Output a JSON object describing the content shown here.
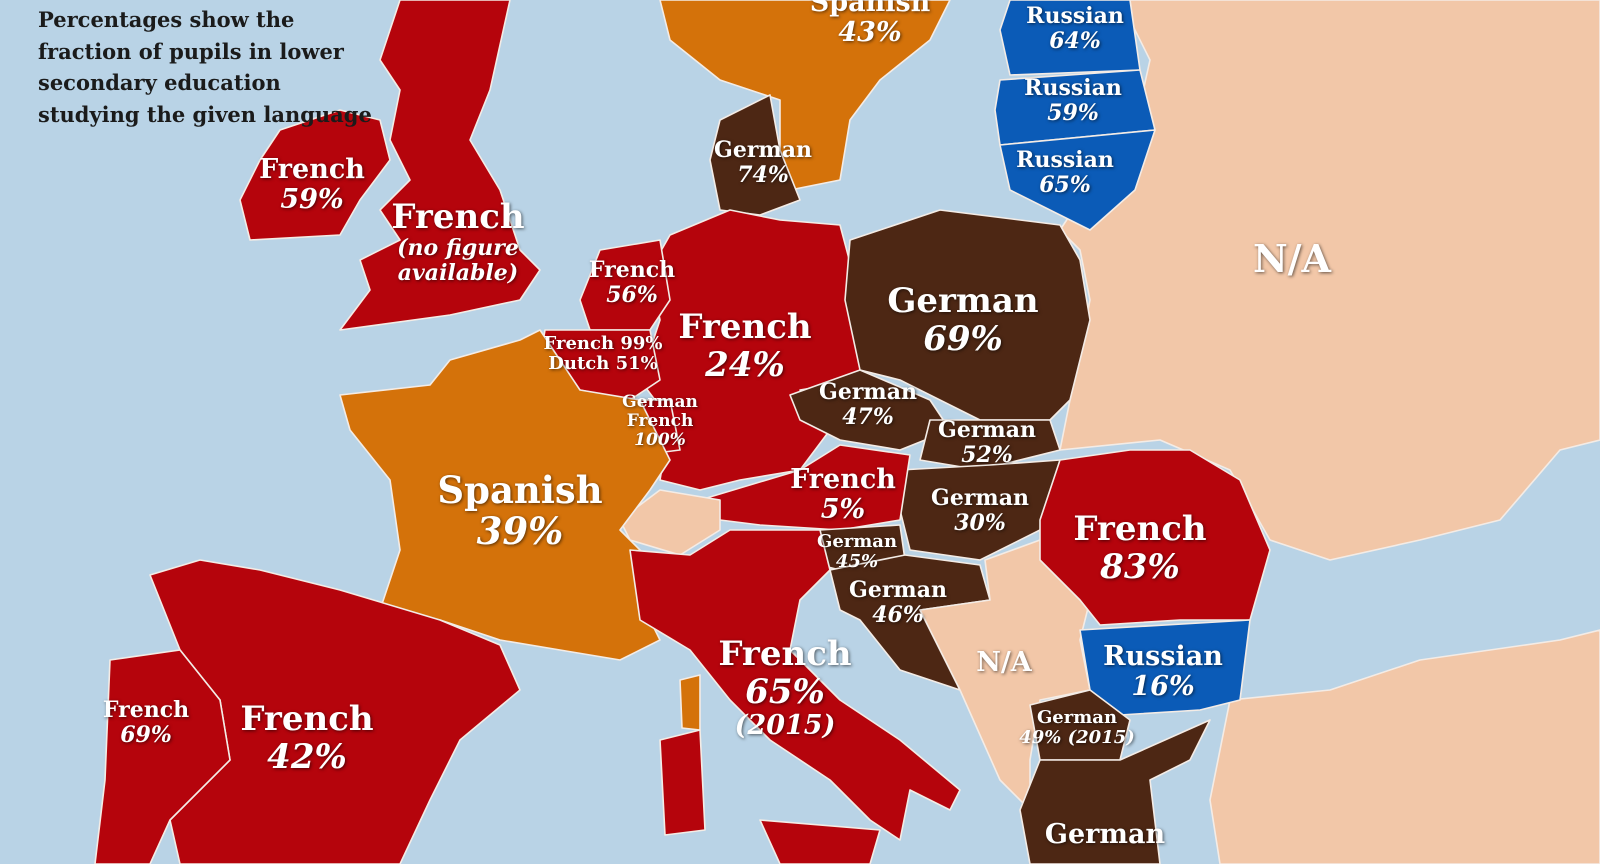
{
  "note": "Percentages show the fraction of pupils in lower secondary education studying the given language",
  "colors": {
    "French": "#b5040c",
    "Spanish": "#d4720a",
    "German": "#4d2714",
    "Russian": "#0b5bb7",
    "N/A": "#f2c7a8",
    "sea": "#b9d3e6"
  },
  "countries": [
    {
      "id": "ireland",
      "language": "French",
      "value": "59%"
    },
    {
      "id": "uk",
      "language": "French",
      "value": "(no figure available)"
    },
    {
      "id": "sweden",
      "language": "Spanish",
      "value": "43%"
    },
    {
      "id": "estonia",
      "language": "Russian",
      "value": "64%"
    },
    {
      "id": "latvia",
      "language": "Russian",
      "value": "59%"
    },
    {
      "id": "lithuania",
      "language": "Russian",
      "value": "65%"
    },
    {
      "id": "denmark",
      "language": "German",
      "value": "74%"
    },
    {
      "id": "netherlands",
      "language": "French",
      "value": "56%"
    },
    {
      "id": "belgium",
      "language": "French 99%",
      "value": "Dutch 51%"
    },
    {
      "id": "luxembourg",
      "language": "German French",
      "value": "100%"
    },
    {
      "id": "germany",
      "language": "French",
      "value": "24%"
    },
    {
      "id": "poland",
      "language": "German",
      "value": "69%"
    },
    {
      "id": "czechia",
      "language": "German",
      "value": "47%"
    },
    {
      "id": "slovakia",
      "language": "German",
      "value": "52%"
    },
    {
      "id": "hungary",
      "language": "German",
      "value": "30%"
    },
    {
      "id": "austria",
      "language": "French",
      "value": "5%"
    },
    {
      "id": "slovenia",
      "language": "German",
      "value": "45%"
    },
    {
      "id": "croatia",
      "language": "German",
      "value": "46%"
    },
    {
      "id": "balkans",
      "language": "N/A",
      "value": ""
    },
    {
      "id": "east",
      "language": "N/A",
      "value": ""
    },
    {
      "id": "romania",
      "language": "French",
      "value": "83%"
    },
    {
      "id": "bulgaria",
      "language": "Russian",
      "value": "16%"
    },
    {
      "id": "macedonia",
      "language": "German",
      "value": "49% (2015)"
    },
    {
      "id": "greece",
      "language": "German",
      "value": ""
    },
    {
      "id": "france",
      "language": "Spanish",
      "value": "39%"
    },
    {
      "id": "italy",
      "language": "French",
      "value": "65%",
      "year": "(2015)"
    },
    {
      "id": "spain",
      "language": "French",
      "value": "42%"
    },
    {
      "id": "portugal",
      "language": "French",
      "value": "69%"
    }
  ]
}
